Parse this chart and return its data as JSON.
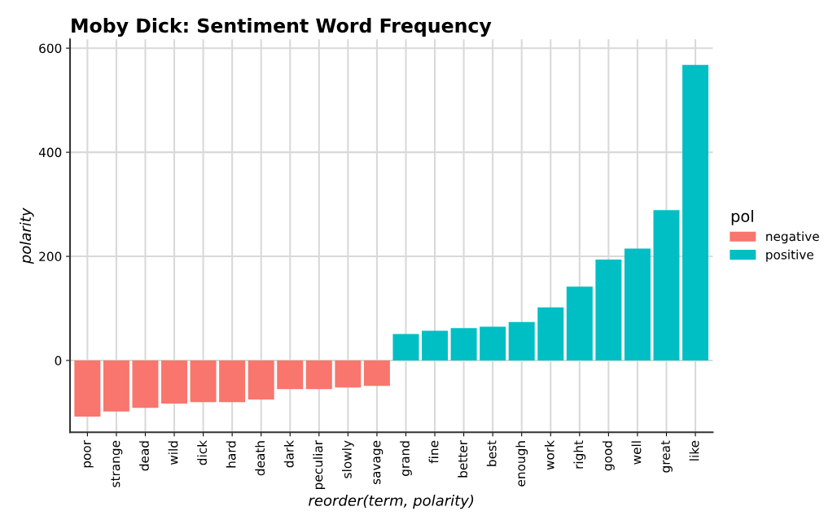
{
  "chart_data": {
    "type": "bar",
    "title": "Moby Dick: Sentiment Word Frequency",
    "xlabel": "reorder(term, polarity)",
    "ylabel": "polarity",
    "legend_title": "pol",
    "categories": [
      "poor",
      "strange",
      "dead",
      "wild",
      "dick",
      "hard",
      "death",
      "dark",
      "peculiar",
      "slowly",
      "savage",
      "grand",
      "fine",
      "better",
      "best",
      "enough",
      "work",
      "right",
      "good",
      "well",
      "great",
      "like"
    ],
    "series": [
      {
        "name": "negative",
        "color": "#f8766d",
        "values": [
          -108,
          -98,
          -91,
          -83,
          -80,
          -80,
          -75,
          -55,
          -55,
          -52,
          -49,
          null,
          null,
          null,
          null,
          null,
          null,
          null,
          null,
          null,
          null,
          null
        ]
      },
      {
        "name": "positive",
        "color": "#00bfc4",
        "values": [
          null,
          null,
          null,
          null,
          null,
          null,
          null,
          null,
          null,
          null,
          null,
          51,
          57,
          62,
          65,
          74,
          102,
          142,
          194,
          215,
          289,
          568
        ]
      }
    ],
    "ylim": [
      -138,
      617
    ],
    "yticks": [
      0,
      200,
      400,
      600
    ],
    "grid": true,
    "legend": "right"
  }
}
